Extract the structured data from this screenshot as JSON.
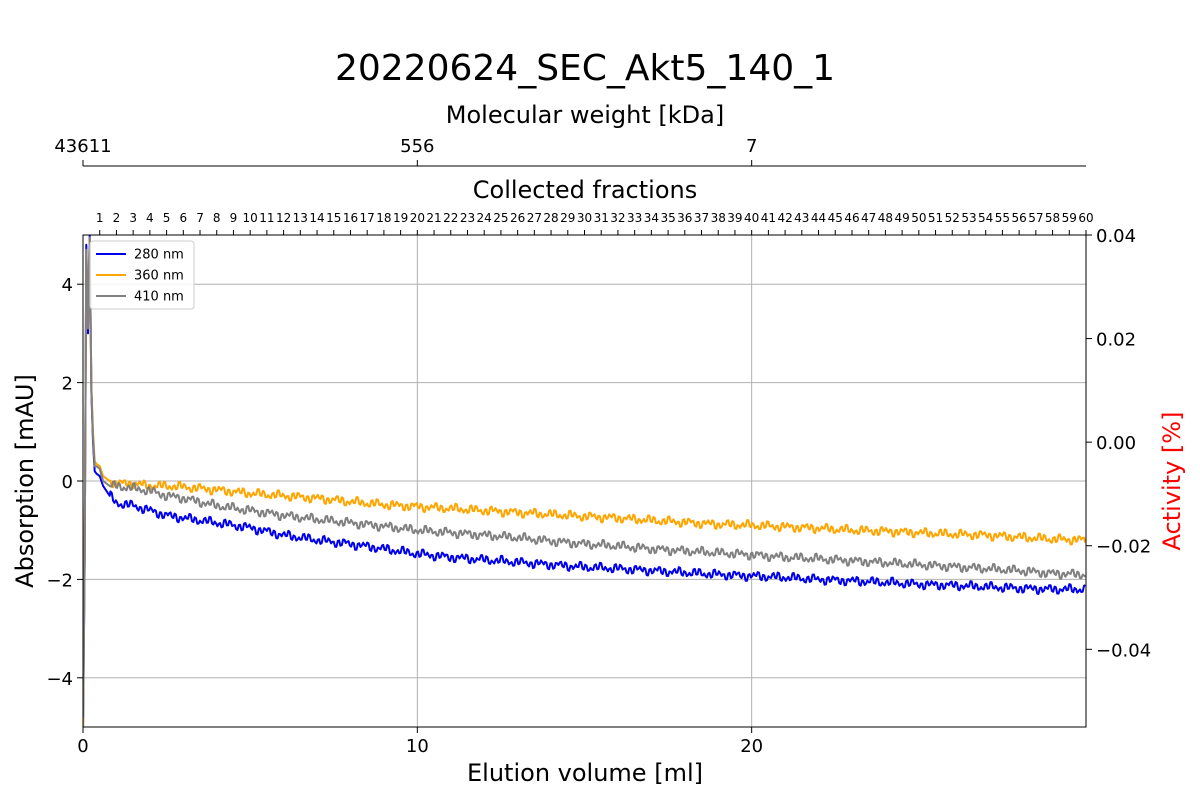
{
  "chart_data": {
    "type": "line",
    "title": "20220624_SEC_Akt5_140_1",
    "xlabel": "Elution volume [ml]",
    "ylabel": "Absorption [mAU]",
    "y2label": "Activity [%]",
    "top_axis_label": "Molecular weight [kDa]",
    "fraction_axis_label": "Collected fractions",
    "xlim": [
      0,
      30
    ],
    "ylim": [
      -5,
      5
    ],
    "y2lim": [
      -0.055,
      0.04
    ],
    "x_ticks": [
      0,
      10,
      20
    ],
    "x_tick_labels": [
      "0",
      "10",
      "20"
    ],
    "y_ticks": [
      -4,
      -2,
      0,
      2,
      4
    ],
    "y_tick_labels": [
      "−4",
      "−2",
      "0",
      "2",
      "4"
    ],
    "y2_ticks": [
      -0.04,
      -0.02,
      0.0,
      0.02,
      0.04
    ],
    "y2_tick_labels": [
      "−0.04",
      "−0.02",
      "0.00",
      "0.02",
      "0.04"
    ],
    "mw_ticks": [
      {
        "x": 0,
        "label": "43611"
      },
      {
        "x": 10,
        "label": "556"
      },
      {
        "x": 20,
        "label": "7"
      }
    ],
    "fractions": {
      "first_x": 0.5,
      "step": 0.5,
      "labels": [
        "1",
        "2",
        "3",
        "4",
        "5",
        "6",
        "7",
        "8",
        "9",
        "10",
        "11",
        "12",
        "13",
        "14",
        "15",
        "16",
        "17",
        "18",
        "19",
        "20",
        "21",
        "22",
        "23",
        "24",
        "25",
        "26",
        "27",
        "28",
        "29",
        "30",
        "31",
        "32",
        "33",
        "34",
        "35",
        "36",
        "37",
        "38",
        "39",
        "40",
        "41",
        "42",
        "43",
        "44",
        "45",
        "46",
        "47",
        "48",
        "49",
        "50",
        "51",
        "52",
        "53",
        "54",
        "55",
        "56",
        "57",
        "58",
        "59",
        "60"
      ]
    },
    "grid": true,
    "legend_position": "top-left",
    "series": [
      {
        "name": "280 nm",
        "color": "#0000ee",
        "x": [
          0,
          0.05,
          0.1,
          0.15,
          0.2,
          0.25,
          0.3,
          0.35,
          0.4,
          0.5,
          0.6,
          0.8,
          1,
          1.5,
          2,
          2.5,
          3,
          4,
          5,
          6,
          7,
          8,
          9,
          10,
          11,
          12,
          13,
          14,
          15,
          16,
          17,
          18,
          19,
          20,
          21,
          22,
          23,
          24,
          25,
          26,
          27,
          28,
          29,
          30
        ],
        "y": [
          -5.2,
          -1.6,
          4.8,
          3.0,
          5.0,
          1.8,
          0.8,
          0.2,
          0.15,
          0.1,
          -0.1,
          -0.3,
          -0.45,
          -0.5,
          -0.6,
          -0.7,
          -0.75,
          -0.85,
          -0.95,
          -1.1,
          -1.2,
          -1.28,
          -1.38,
          -1.48,
          -1.55,
          -1.6,
          -1.65,
          -1.7,
          -1.75,
          -1.78,
          -1.82,
          -1.86,
          -1.9,
          -1.93,
          -1.96,
          -2.0,
          -2.03,
          -2.06,
          -2.1,
          -2.12,
          -2.15,
          -2.18,
          -2.2,
          -2.2
        ]
      },
      {
        "name": "360 nm",
        "color": "#ffa500",
        "x": [
          0,
          0.05,
          0.1,
          0.15,
          0.2,
          0.25,
          0.3,
          0.35,
          0.4,
          0.5,
          0.6,
          0.8,
          1,
          1.5,
          2,
          2.5,
          3,
          4,
          5,
          6,
          7,
          8,
          9,
          10,
          11,
          12,
          13,
          14,
          15,
          16,
          17,
          18,
          19,
          20,
          21,
          22,
          23,
          24,
          25,
          26,
          27,
          28,
          29,
          30
        ],
        "y": [
          -5.0,
          -1.4,
          4.6,
          3.2,
          4.9,
          1.9,
          1.0,
          0.4,
          0.35,
          0.3,
          0.1,
          0.0,
          -0.05,
          -0.05,
          -0.1,
          -0.1,
          -0.12,
          -0.18,
          -0.25,
          -0.3,
          -0.35,
          -0.42,
          -0.48,
          -0.52,
          -0.56,
          -0.6,
          -0.64,
          -0.68,
          -0.72,
          -0.75,
          -0.8,
          -0.84,
          -0.88,
          -0.9,
          -0.93,
          -0.96,
          -1.0,
          -1.02,
          -1.05,
          -1.08,
          -1.1,
          -1.14,
          -1.18,
          -1.2
        ]
      },
      {
        "name": "410 nm",
        "color": "#808080",
        "x": [
          0,
          0.05,
          0.1,
          0.15,
          0.2,
          0.25,
          0.3,
          0.35,
          0.4,
          0.5,
          0.6,
          0.8,
          1,
          1.5,
          2,
          2.5,
          3,
          4,
          5,
          6,
          7,
          8,
          9,
          10,
          11,
          12,
          13,
          14,
          15,
          16,
          17,
          18,
          19,
          20,
          21,
          22,
          23,
          24,
          25,
          26,
          27,
          28,
          29,
          30
        ],
        "y": [
          -4.8,
          -1.5,
          4.7,
          3.1,
          4.95,
          1.85,
          0.9,
          0.3,
          0.3,
          0.25,
          0.0,
          -0.1,
          -0.1,
          -0.15,
          -0.2,
          -0.3,
          -0.35,
          -0.5,
          -0.6,
          -0.7,
          -0.78,
          -0.85,
          -0.92,
          -1.0,
          -1.05,
          -1.1,
          -1.15,
          -1.22,
          -1.28,
          -1.32,
          -1.38,
          -1.42,
          -1.46,
          -1.5,
          -1.55,
          -1.58,
          -1.62,
          -1.66,
          -1.7,
          -1.74,
          -1.78,
          -1.82,
          -1.88,
          -1.9
        ]
      }
    ]
  }
}
